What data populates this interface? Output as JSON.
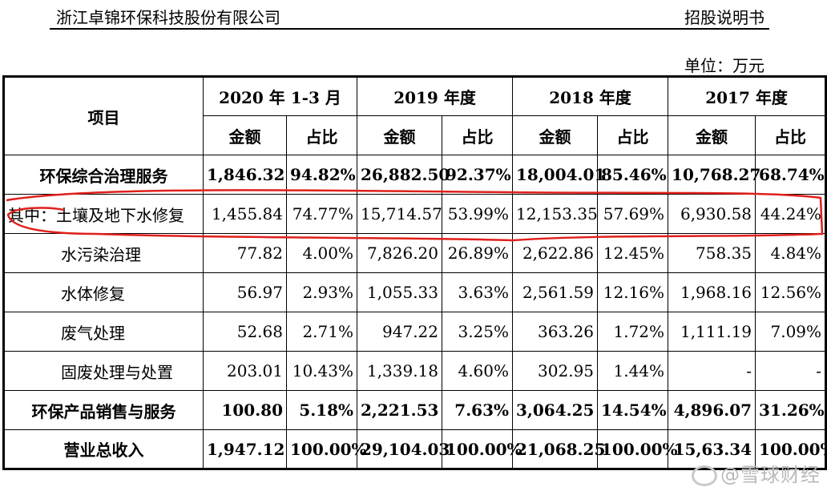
{
  "header": {
    "company": "浙江卓锦环保科技股份有限公司",
    "doc": "招股说明书"
  },
  "unit": "单位：万元",
  "table": {
    "item_header": "项目",
    "periods": [
      "2020 年 1-3 月",
      "2019 年度",
      "2018 年度",
      "2017 年度"
    ],
    "amount_label": "金额",
    "ratio_label": "占比",
    "rows": [
      {
        "label": "环保综合治理服务",
        "bold": true,
        "cells": [
          "1,846.32",
          "94.82%",
          "26,882.50",
          "92.37%",
          "18,004.01",
          "85.46%",
          "10,768.27",
          "68.74%"
        ]
      },
      {
        "label": "其中：土壤及地下水修复",
        "bold": false,
        "cells": [
          "1,455.84",
          "74.77%",
          "15,714.57",
          "53.99%",
          "12,153.35",
          "57.69%",
          "6,930.58",
          "44.24%"
        ]
      },
      {
        "label": "水污染治理",
        "bold": false,
        "cells": [
          "77.82",
          "4.00%",
          "7,826.20",
          "26.89%",
          "2,622.86",
          "12.45%",
          "758.35",
          "4.84%"
        ]
      },
      {
        "label": "水体修复",
        "bold": false,
        "cells": [
          "56.97",
          "2.93%",
          "1,055.33",
          "3.63%",
          "2,561.59",
          "12.16%",
          "1,968.16",
          "12.56%"
        ]
      },
      {
        "label": "废气处理",
        "bold": false,
        "cells": [
          "52.68",
          "2.71%",
          "947.22",
          "3.25%",
          "363.26",
          "1.72%",
          "1,111.19",
          "7.09%"
        ]
      },
      {
        "label": "固废处理与处置",
        "bold": false,
        "cells": [
          "203.01",
          "10.43%",
          "1,339.18",
          "4.60%",
          "302.95",
          "1.44%",
          "-",
          "-"
        ]
      },
      {
        "label": "环保产品销售与服务",
        "bold": true,
        "cells": [
          "100.80",
          "5.18%",
          "2,221.53",
          "7.63%",
          "3,064.25",
          "14.54%",
          "4,896.07",
          "31.26%"
        ]
      },
      {
        "label": "营业总收入",
        "bold": true,
        "cells": [
          "1,947.12",
          "100.00%",
          "29,104.03",
          "100.00%",
          "21,068.25",
          "100.00%",
          "15,6⁠⁠⁠⁠⁠⁠3.34",
          "100.00%"
        ]
      }
    ]
  },
  "watermark": "@雪球财经",
  "highlight_color": "#e0201b"
}
